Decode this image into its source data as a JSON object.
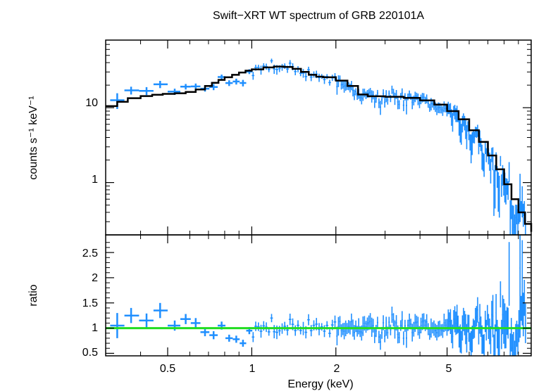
{
  "chart_data": {
    "type": "scatter",
    "title": "Swift−XRT WT spectrum of GRB 220101A",
    "xlabel": "Energy (keV)",
    "x_scale": "log",
    "xlim": [
      0.3,
      10
    ],
    "xticks": [
      "0.5",
      "1",
      "2",
      "5"
    ],
    "colors": {
      "data": "#1f8fff",
      "model": "#000000",
      "unity": "#22dd22"
    },
    "panels": [
      {
        "name": "spectrum",
        "ylabel": "counts s⁻¹ keV⁻¹",
        "y_scale": "log",
        "ylim": [
          0.2,
          80
        ],
        "yticks": [
          "1",
          "10"
        ]
      },
      {
        "name": "ratio",
        "ylabel": "ratio",
        "y_scale": "linear",
        "ylim": [
          0.45,
          2.85
        ],
        "yticks": [
          "0.5",
          "1",
          "1.5",
          "2",
          "2.5"
        ]
      }
    ],
    "series": [
      {
        "kind": "model",
        "x": [
          0.3,
          0.33,
          0.36,
          0.4,
          0.44,
          0.48,
          0.53,
          0.58,
          0.63,
          0.68,
          0.72,
          0.76,
          0.8,
          0.85,
          0.9,
          0.95,
          1.0,
          1.1,
          1.2,
          1.3,
          1.4,
          1.5,
          1.6,
          1.7,
          1.8,
          2.0,
          2.2,
          2.4,
          2.6,
          3.0,
          3.5,
          4.0,
          4.5,
          5.0,
          5.5,
          6.0,
          6.5,
          7.0,
          7.5,
          8.0,
          8.5,
          9.0,
          9.5,
          10.0
        ],
        "y": [
          10.5,
          12.0,
          13.4,
          14.3,
          14.9,
          15.3,
          15.6,
          16.2,
          17.5,
          19.5,
          21.5,
          23.5,
          25.5,
          27.5,
          29.5,
          31.2,
          32.5,
          34.5,
          35.5,
          35.0,
          33.0,
          30.0,
          27.5,
          26.0,
          25.5,
          23.0,
          19.5,
          15.0,
          14.2,
          14.0,
          13.5,
          12.5,
          11.0,
          9.0,
          7.0,
          5.0,
          3.5,
          2.3,
          1.5,
          0.95,
          0.6,
          0.4,
          0.28,
          0.22
        ]
      }
    ]
  }
}
